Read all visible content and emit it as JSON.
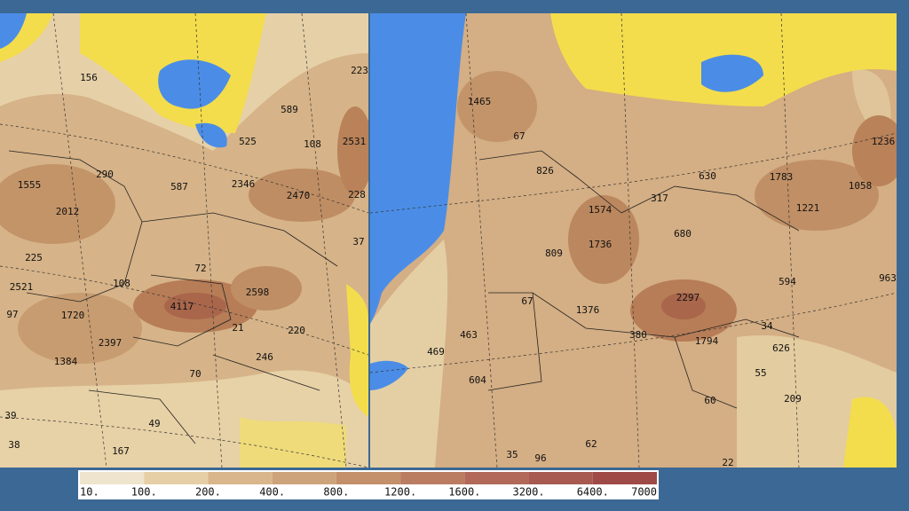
{
  "maps": [
    {
      "labels": [
        156,
        223,
        589,
        525,
        108,
        2531,
        290,
        1555,
        587,
        2346,
        2470,
        228,
        2012,
        37,
        225,
        72,
        2521,
        108,
        2598,
        4117,
        97,
        1720,
        21,
        220,
        2397,
        246,
        1384,
        70,
        39,
        49,
        167,
        38
      ]
    },
    {
      "labels": [
        1465,
        67,
        1236,
        826,
        630,
        1783,
        317,
        1058,
        1574,
        1221,
        680,
        1736,
        809,
        2297,
        594,
        963,
        67,
        1376,
        463,
        380,
        1794,
        34,
        626,
        469,
        55,
        604,
        209,
        60,
        62,
        35,
        96,
        22
      ]
    }
  ],
  "colorbar": {
    "labels": [
      "10.",
      "100.",
      "200.",
      "400.",
      "800.",
      "1200.",
      "1600.",
      "3200.",
      "6400.",
      "7000"
    ]
  }
}
